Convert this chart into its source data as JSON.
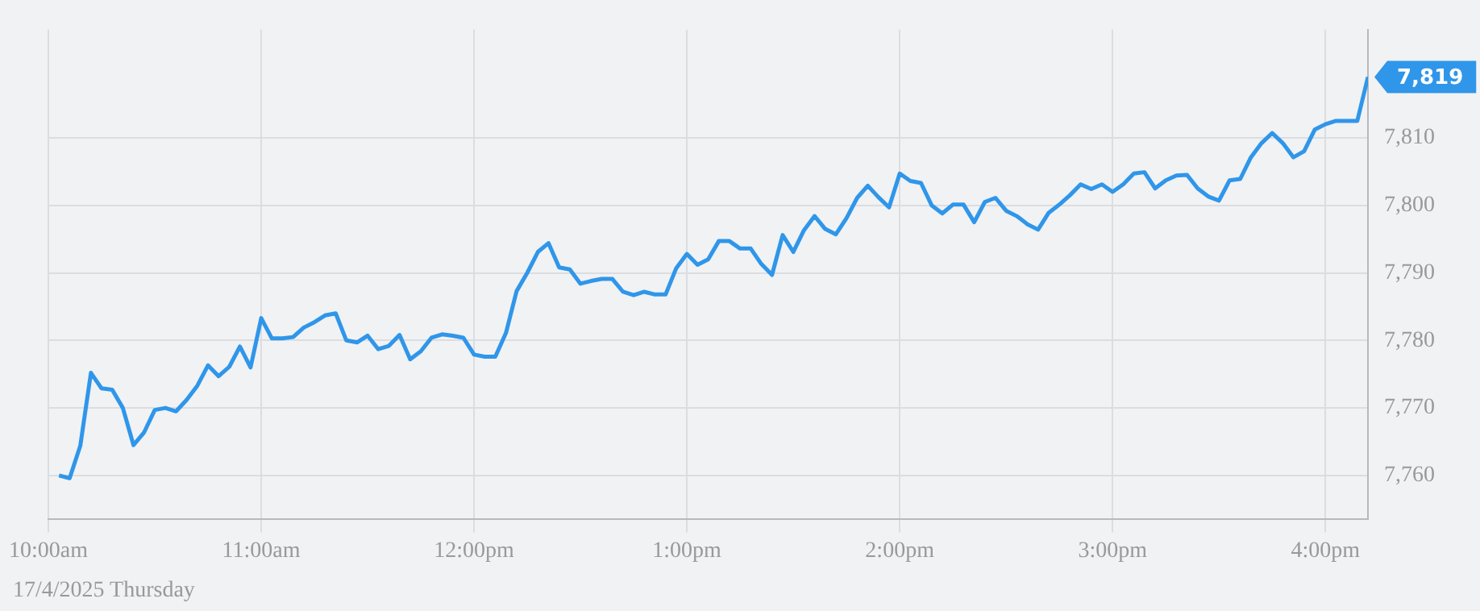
{
  "chart_data": {
    "type": "line",
    "x": [
      10.05,
      10.1,
      10.15,
      10.2,
      10.25,
      10.3,
      10.35,
      10.4,
      10.45,
      10.5,
      10.55,
      10.6,
      10.65,
      10.7,
      10.75,
      10.8,
      10.85,
      10.9,
      10.95,
      11,
      11.05,
      11.1,
      11.15,
      11.2,
      11.25,
      11.3,
      11.35,
      11.4,
      11.45,
      11.5,
      11.55,
      11.6,
      11.65,
      11.7,
      11.75,
      11.8,
      11.85,
      11.9,
      11.95,
      12,
      12.05,
      12.1,
      12.15,
      12.2,
      12.25,
      12.3,
      12.35,
      12.4,
      12.45,
      12.5,
      12.55,
      12.6,
      12.65,
      12.7,
      12.75,
      12.8,
      12.85,
      12.9,
      12.95,
      13,
      13.05,
      13.1,
      13.15,
      13.2,
      13.25,
      13.3,
      13.35,
      13.4,
      13.45,
      13.5,
      13.55,
      13.6,
      13.65,
      13.7,
      13.75,
      13.8,
      13.85,
      13.9,
      13.95,
      14,
      14.05,
      14.1,
      14.15,
      14.2,
      14.25,
      14.3,
      14.35,
      14.4,
      14.45,
      14.5,
      14.55,
      14.6,
      14.65,
      14.7,
      14.75,
      14.8,
      14.85,
      14.9,
      14.95,
      15,
      15.05,
      15.1,
      15.15,
      15.2,
      15.25,
      15.3,
      15.35,
      15.4,
      15.45,
      15.5,
      15.55,
      15.6,
      15.65,
      15.7,
      15.75,
      15.8,
      15.85,
      15.9,
      15.95,
      16,
      16.05,
      16.1,
      16.15,
      16.2
    ],
    "series": [
      {
        "color": "#2f96ea",
        "values": [
          7760,
          7759.6,
          7764.4,
          7775.2,
          7772.9,
          7772.7,
          7770,
          7764.5,
          7766.4,
          7769.7,
          7770,
          7769.5,
          7771.2,
          7773.3,
          7776.3,
          7774.7,
          7776.1,
          7779.1,
          7776,
          7783.3,
          7780.3,
          7780.3,
          7780.5,
          7781.9,
          7782.7,
          7783.7,
          7784,
          7780,
          7779.7,
          7780.7,
          7778.7,
          7779.2,
          7780.8,
          7777.2,
          7778.4,
          7780.4,
          7780.9,
          7780.7,
          7780.4,
          7777.9,
          7777.6,
          7777.6,
          7781.1,
          7787.3,
          7790,
          7793.1,
          7794.4,
          7790.8,
          7790.5,
          7788.4,
          7788.8,
          7789.1,
          7789.1,
          7787.2,
          7786.7,
          7787.2,
          7786.8,
          7786.8,
          7790.7,
          7792.8,
          7791.2,
          7792,
          7794.7,
          7794.7,
          7793.6,
          7793.6,
          7791.3,
          7789.7,
          7795.6,
          7793.1,
          7796.3,
          7798.4,
          7796.5,
          7795.7,
          7798.1,
          7801.1,
          7802.9,
          7801.2,
          7799.7,
          7804.7,
          7803.6,
          7803.3,
          7800,
          7798.8,
          7800.1,
          7800.1,
          7797.5,
          7800.5,
          7801.1,
          7799.2,
          7798.4,
          7797.2,
          7796.4,
          7798.9,
          7800.1,
          7801.5,
          7803.1,
          7802.4,
          7803.1,
          7802,
          7803.1,
          7804.7,
          7804.9,
          7802.5,
          7803.7,
          7804.4,
          7804.5,
          7802.5,
          7801.3,
          7800.7,
          7803.7,
          7803.9,
          7807.1,
          7809.2,
          7810.7,
          7809.2,
          7807.1,
          7808,
          7811.2,
          7812,
          7812.5,
          7812.5,
          7812.5,
          7819
        ]
      }
    ],
    "xlim": [
      10,
      16.2
    ],
    "xticks": [
      {
        "value": 10,
        "label": "10:00am"
      },
      {
        "value": 11,
        "label": "11:00am"
      },
      {
        "value": 12,
        "label": "12:00pm"
      },
      {
        "value": 13,
        "label": "1:00pm"
      },
      {
        "value": 14,
        "label": "2:00pm"
      },
      {
        "value": 15,
        "label": "3:00pm"
      },
      {
        "value": 16,
        "label": "4:00pm"
      }
    ],
    "ylim": [
      7753.5,
      7826
    ],
    "yticks": [
      {
        "value": 7760,
        "label": "7,760"
      },
      {
        "value": 7770,
        "label": "7,770"
      },
      {
        "value": 7780,
        "label": "7,780"
      },
      {
        "value": 7790,
        "label": "7,790"
      },
      {
        "value": 7800,
        "label": "7,800"
      },
      {
        "value": 7810,
        "label": "7,810"
      }
    ],
    "annotations": [
      {
        "text": "7,819",
        "x": 16.2,
        "y": 7819
      },
      "17/4/2025 Thursday"
    ],
    "grid": true,
    "legend": false,
    "marker": "none",
    "line_style": "solid"
  }
}
